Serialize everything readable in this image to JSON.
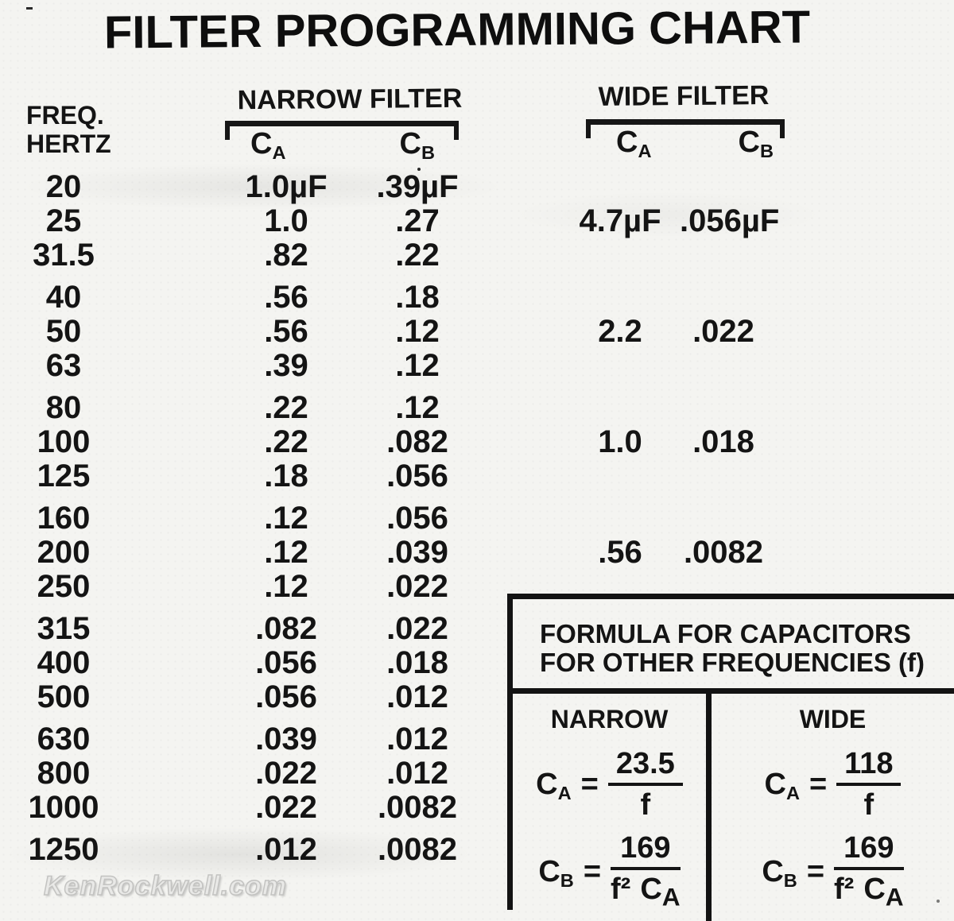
{
  "title": "FILTER PROGRAMMING CHART",
  "watermark": "KenRockwell.com",
  "labels": {
    "freq_line1": "FREQ.",
    "freq_line2": "HERTZ",
    "narrow_filter": "NARROW  FILTER",
    "wide_filter": "WIDE  FILTER",
    "c": "C",
    "sub_a": "A",
    "sub_b": "B"
  },
  "table": {
    "rows": [
      {
        "freq": "20",
        "n_ca": "1.0µF",
        "n_cb": ".39µF",
        "w_ca": "",
        "w_cb": ""
      },
      {
        "freq": "25",
        "n_ca": "1.0",
        "n_cb": ".27",
        "w_ca": "4.7µF",
        "w_cb": ".056µF"
      },
      {
        "freq": "31.5",
        "n_ca": ".82",
        "n_cb": ".22",
        "w_ca": "",
        "w_cb": ""
      },
      {
        "freq": "40",
        "n_ca": ".56",
        "n_cb": ".18",
        "w_ca": "",
        "w_cb": ""
      },
      {
        "freq": "50",
        "n_ca": ".56",
        "n_cb": ".12",
        "w_ca": "2.2",
        "w_cb": ".022"
      },
      {
        "freq": "63",
        "n_ca": ".39",
        "n_cb": ".12",
        "w_ca": "",
        "w_cb": ""
      },
      {
        "freq": "80",
        "n_ca": ".22",
        "n_cb": ".12",
        "w_ca": "",
        "w_cb": ""
      },
      {
        "freq": "100",
        "n_ca": ".22",
        "n_cb": ".082",
        "w_ca": "1.0",
        "w_cb": ".018"
      },
      {
        "freq": "125",
        "n_ca": ".18",
        "n_cb": ".056",
        "w_ca": "",
        "w_cb": ""
      },
      {
        "freq": "160",
        "n_ca": ".12",
        "n_cb": ".056",
        "w_ca": "",
        "w_cb": ""
      },
      {
        "freq": "200",
        "n_ca": ".12",
        "n_cb": ".039",
        "w_ca": ".56",
        "w_cb": ".0082"
      },
      {
        "freq": "250",
        "n_ca": ".12",
        "n_cb": ".022",
        "w_ca": "",
        "w_cb": ""
      },
      {
        "freq": "315",
        "n_ca": ".082",
        "n_cb": ".022",
        "w_ca": "",
        "w_cb": ""
      },
      {
        "freq": "400",
        "n_ca": ".056",
        "n_cb": ".018",
        "w_ca": "",
        "w_cb": ""
      },
      {
        "freq": "500",
        "n_ca": ".056",
        "n_cb": ".012",
        "w_ca": "",
        "w_cb": ""
      },
      {
        "freq": "630",
        "n_ca": ".039",
        "n_cb": ".012",
        "w_ca": "",
        "w_cb": ""
      },
      {
        "freq": "800",
        "n_ca": ".022",
        "n_cb": ".012",
        "w_ca": "",
        "w_cb": ""
      },
      {
        "freq": "1000",
        "n_ca": ".022",
        "n_cb": ".0082",
        "w_ca": "",
        "w_cb": ""
      },
      {
        "freq": "1250",
        "n_ca": ".012",
        "n_cb": ".0082",
        "w_ca": "",
        "w_cb": ""
      }
    ]
  },
  "formula_box": {
    "title_line1": "FORMULA FOR CAPACITORS",
    "title_line2": "FOR OTHER FREQUENCIES (f)",
    "narrow_label": "NARROW",
    "wide_label": "WIDE",
    "equals": "=",
    "narrow": {
      "ca_num": "23.5",
      "ca_den": "f",
      "cb_num": "169",
      "cb_den_f": "f²"
    },
    "wide": {
      "ca_num": "118",
      "ca_den": "f",
      "cb_num": "169",
      "cb_den_f": "f²"
    }
  }
}
